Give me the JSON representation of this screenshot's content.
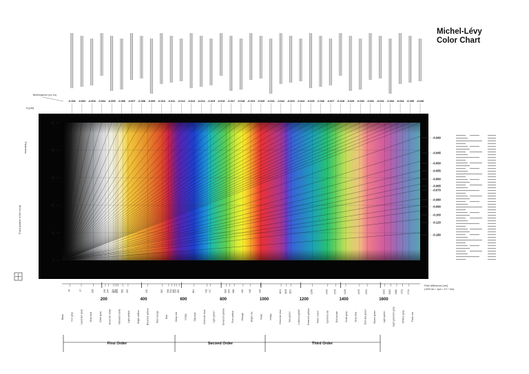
{
  "page": {
    "title_line1": "Michel-Lévy",
    "title_line2": "Color Chart"
  },
  "chart_data": {
    "type": "area",
    "title": "Michel-Lévy Color Chart",
    "ylabel": "Thickness",
    "yunit": "d [µm]",
    "birefringence_label": "Birefringence (ny−nz)",
    "path_difference_label": "Path difference [nm]",
    "path_difference_note": "(1000 nm = 1µm = 10⁻⁶ mm)",
    "ylim": [
      0,
      50
    ],
    "y_ticks": [
      0,
      10,
      20,
      30,
      40,
      50
    ],
    "xlim": [
      0,
      1800
    ],
    "x_major_ticks": [
      200,
      400,
      600,
      800,
      1000,
      1200,
      1400,
      1600
    ],
    "x_minor_ticks": [
      40,
      97,
      158,
      218,
      234,
      259,
      267,
      275,
      281,
      306,
      332,
      430,
      505,
      536,
      551,
      565,
      575,
      589,
      664,
      728,
      747,
      826,
      843,
      866,
      910,
      948,
      998,
      1101,
      1128,
      1151,
      1258,
      1334,
      1376,
      1426,
      1495,
      1534,
      1621,
      1652,
      1682,
      1711,
      1744
    ],
    "birefringence_values": [
      "0.001",
      "0.002",
      "0.003",
      "0.004",
      "0.005",
      "0.006",
      "0.007",
      "0.008",
      "0.009",
      "0.010",
      "0.011",
      "0.012",
      "0.013",
      "0.014",
      "0.015",
      "0.016",
      "0.017",
      "0.018",
      "0.019",
      "0.020",
      "0.021",
      "0.022",
      "0.023",
      "0.024",
      "0.025",
      "0.026",
      "0.027",
      "0.028",
      "0.029",
      "0.030",
      "0.031",
      "0.032",
      "0.033",
      "0.034",
      "0.035",
      "0.036"
    ],
    "right_birefringence_values": [
      "0.040",
      "0.045",
      "0.050",
      "0.055",
      "0.060",
      "0.065",
      "0.070",
      "0.080",
      "0.090",
      "0.100",
      "0.120",
      "0.180"
    ],
    "interference_colors": [
      "Black",
      "Iron grey",
      "Lavender grey",
      "Grey blue",
      "Clear grey",
      "Greenish white",
      "Yellowish white",
      "Light yellow",
      "Bright yellow",
      "Brownish yellow",
      "Red orange",
      "Red",
      "Deep red",
      "Indigo",
      "Sky blue",
      "Greenish blue",
      "Light green",
      "Greenish yellow",
      "Pure yellow",
      "Orange",
      "Bright red",
      "Violet",
      "Indigo",
      "Greenish blue",
      "Sea green",
      "Lustrous green",
      "Greenish yellow",
      "Flesh colour",
      "Carmine red",
      "Dull purple",
      "Violet grey",
      "Grey blue",
      "Dull sea green",
      "Bluish green",
      "Light green",
      "Light greenish grey",
      "Whitish grey",
      "Flesh red"
    ],
    "orders": [
      "First Order",
      "Second Order",
      "Third Order"
    ],
    "orientation_label": "Fixed position of the nicols",
    "spectrum_stops": [
      {
        "nm": 0,
        "color": "#000000"
      },
      {
        "nm": 40,
        "color": "#1a1a1a"
      },
      {
        "nm": 97,
        "color": "#5f5f5f"
      },
      {
        "nm": 158,
        "color": "#a3a6aa"
      },
      {
        "nm": 218,
        "color": "#e6e6e6"
      },
      {
        "nm": 259,
        "color": "#f4f0d9"
      },
      {
        "nm": 306,
        "color": "#f5e48a"
      },
      {
        "nm": 332,
        "color": "#f2c93a"
      },
      {
        "nm": 430,
        "color": "#e68a2a"
      },
      {
        "nm": 505,
        "color": "#e2462a"
      },
      {
        "nm": 536,
        "color": "#c8204a"
      },
      {
        "nm": 565,
        "color": "#8a1f8a"
      },
      {
        "nm": 589,
        "color": "#5a22b0"
      },
      {
        "nm": 664,
        "color": "#1c3fd0"
      },
      {
        "nm": 728,
        "color": "#1a9ad8"
      },
      {
        "nm": 747,
        "color": "#19b7b0"
      },
      {
        "nm": 826,
        "color": "#5fd04a"
      },
      {
        "nm": 866,
        "color": "#c4e83a"
      },
      {
        "nm": 910,
        "color": "#f7ef2a"
      },
      {
        "nm": 948,
        "color": "#f7a52a"
      },
      {
        "nm": 998,
        "color": "#ee3030"
      },
      {
        "nm": 1101,
        "color": "#a63796"
      },
      {
        "nm": 1128,
        "color": "#6a3ac8"
      },
      {
        "nm": 1151,
        "color": "#3a5ed8"
      },
      {
        "nm": 1258,
        "color": "#1aa0b8"
      },
      {
        "nm": 1334,
        "color": "#2ac070"
      },
      {
        "nm": 1376,
        "color": "#6ad05a"
      },
      {
        "nm": 1426,
        "color": "#c6e05a"
      },
      {
        "nm": 1495,
        "color": "#f0c080"
      },
      {
        "nm": 1534,
        "color": "#ee7e8a"
      },
      {
        "nm": 1621,
        "color": "#d05aa0"
      },
      {
        "nm": 1682,
        "color": "#9a6ab8"
      },
      {
        "nm": 1744,
        "color": "#6a8ac0"
      },
      {
        "nm": 1800,
        "color": "#5aa4b0"
      }
    ],
    "grid": true,
    "axis_color": "#000000",
    "gridline_color": "#2a2a2a"
  }
}
